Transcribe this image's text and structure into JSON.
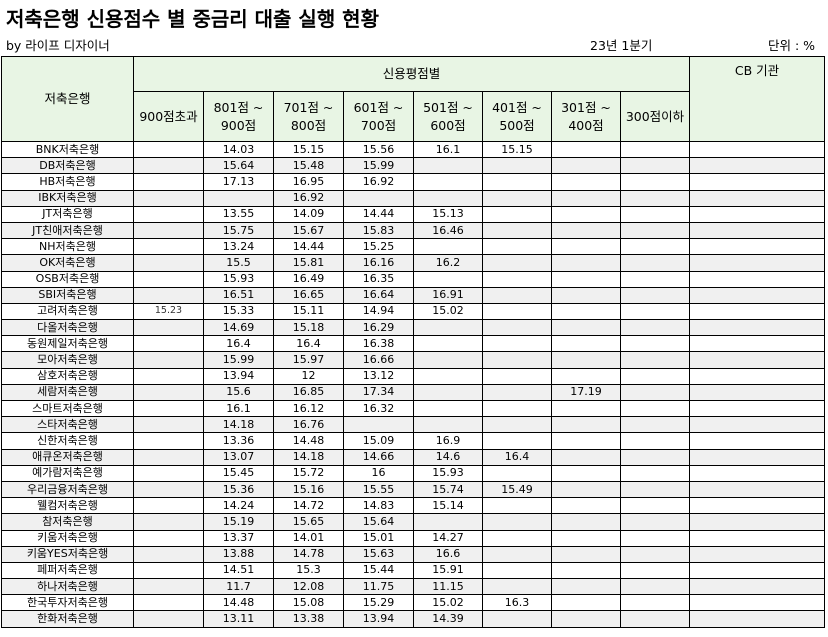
{
  "header": {
    "title": "저축은행 신용점수 별 중금리 대출 실행 현황",
    "byline": "by 라이프 디자이너",
    "period": "23년 1분기",
    "unit": "단위 : %"
  },
  "table": {
    "bank_header": "저축은행",
    "group_header": "신용평점별",
    "cb_header": "CB 기관",
    "columns": [
      {
        "line1": "900점초과",
        "line2": ""
      },
      {
        "line1": "801점 ~",
        "line2": "900점"
      },
      {
        "line1": "701점 ~",
        "line2": "800점"
      },
      {
        "line1": "601점 ~",
        "line2": "700점"
      },
      {
        "line1": "501점 ~",
        "line2": "600점"
      },
      {
        "line1": "401점 ~",
        "line2": "500점"
      },
      {
        "line1": "301점 ~",
        "line2": "400점"
      },
      {
        "line1": "300점이하",
        "line2": ""
      }
    ],
    "rows": [
      {
        "bank": "BNK저축은행",
        "v": [
          "",
          "14.03",
          "15.15",
          "15.56",
          "16.1",
          "15.15",
          "",
          ""
        ],
        "cb": ""
      },
      {
        "bank": "DB저축은행",
        "v": [
          "",
          "15.64",
          "15.48",
          "15.99",
          "",
          "",
          "",
          ""
        ],
        "cb": ""
      },
      {
        "bank": "HB저축은행",
        "v": [
          "",
          "17.13",
          "16.95",
          "16.92",
          "",
          "",
          "",
          ""
        ],
        "cb": ""
      },
      {
        "bank": "IBK저축은행",
        "v": [
          "",
          "",
          "16.92",
          "",
          "",
          "",
          "",
          ""
        ],
        "cb": ""
      },
      {
        "bank": "JT저축은행",
        "v": [
          "",
          "13.55",
          "14.09",
          "14.44",
          "15.13",
          "",
          "",
          ""
        ],
        "cb": ""
      },
      {
        "bank": "JT친애저축은행",
        "v": [
          "",
          "15.75",
          "15.67",
          "15.83",
          "16.46",
          "",
          "",
          ""
        ],
        "cb": ""
      },
      {
        "bank": "NH저축은행",
        "v": [
          "",
          "13.24",
          "14.44",
          "15.25",
          "",
          "",
          "",
          ""
        ],
        "cb": ""
      },
      {
        "bank": "OK저축은행",
        "v": [
          "",
          "15.5",
          "15.81",
          "16.16",
          "16.2",
          "",
          "",
          ""
        ],
        "cb": ""
      },
      {
        "bank": "OSB저축은행",
        "v": [
          "",
          "15.93",
          "16.49",
          "16.35",
          "",
          "",
          "",
          ""
        ],
        "cb": ""
      },
      {
        "bank": "SBI저축은행",
        "v": [
          "",
          "16.51",
          "16.65",
          "16.64",
          "16.91",
          "",
          "",
          ""
        ],
        "cb": ""
      },
      {
        "bank": "고려저축은행",
        "v": [
          "15.23",
          "15.33",
          "15.11",
          "14.94",
          "15.02",
          "",
          "",
          ""
        ],
        "cb": ""
      },
      {
        "bank": "다올저축은행",
        "v": [
          "",
          "14.69",
          "15.18",
          "16.29",
          "",
          "",
          "",
          ""
        ],
        "cb": ""
      },
      {
        "bank": "동원제일저축은행",
        "v": [
          "",
          "16.4",
          "16.4",
          "16.38",
          "",
          "",
          "",
          ""
        ],
        "cb": ""
      },
      {
        "bank": "모아저축은행",
        "v": [
          "",
          "15.99",
          "15.97",
          "16.66",
          "",
          "",
          "",
          ""
        ],
        "cb": ""
      },
      {
        "bank": "삼호저축은행",
        "v": [
          "",
          "13.94",
          "12",
          "13.12",
          "",
          "",
          "",
          ""
        ],
        "cb": ""
      },
      {
        "bank": "세람저축은행",
        "v": [
          "",
          "15.6",
          "16.85",
          "17.34",
          "",
          "",
          "17.19",
          ""
        ],
        "cb": ""
      },
      {
        "bank": "스마트저축은행",
        "v": [
          "",
          "16.1",
          "16.12",
          "16.32",
          "",
          "",
          "",
          ""
        ],
        "cb": ""
      },
      {
        "bank": "스타저축은행",
        "v": [
          "",
          "14.18",
          "16.76",
          "",
          "",
          "",
          "",
          ""
        ],
        "cb": ""
      },
      {
        "bank": "신한저축은행",
        "v": [
          "",
          "13.36",
          "14.48",
          "15.09",
          "16.9",
          "",
          "",
          ""
        ],
        "cb": ""
      },
      {
        "bank": "애큐온저축은행",
        "v": [
          "",
          "13.07",
          "14.18",
          "14.66",
          "14.6",
          "16.4",
          "",
          ""
        ],
        "cb": ""
      },
      {
        "bank": "예가람저축은행",
        "v": [
          "",
          "15.45",
          "15.72",
          "16",
          "15.93",
          "",
          "",
          ""
        ],
        "cb": ""
      },
      {
        "bank": "우리금융저축은행",
        "v": [
          "",
          "15.36",
          "15.16",
          "15.55",
          "15.74",
          "15.49",
          "",
          ""
        ],
        "cb": ""
      },
      {
        "bank": "웰컴저축은행",
        "v": [
          "",
          "14.24",
          "14.72",
          "14.83",
          "15.14",
          "",
          "",
          ""
        ],
        "cb": ""
      },
      {
        "bank": "참저축은행",
        "v": [
          "",
          "15.19",
          "15.65",
          "15.64",
          "",
          "",
          "",
          ""
        ],
        "cb": ""
      },
      {
        "bank": "키움저축은행",
        "v": [
          "",
          "13.37",
          "14.01",
          "15.01",
          "14.27",
          "",
          "",
          ""
        ],
        "cb": ""
      },
      {
        "bank": "키움YES저축은행",
        "v": [
          "",
          "13.88",
          "14.78",
          "15.63",
          "16.6",
          "",
          "",
          ""
        ],
        "cb": ""
      },
      {
        "bank": "페퍼저축은행",
        "v": [
          "",
          "14.51",
          "15.3",
          "15.44",
          "15.91",
          "",
          "",
          ""
        ],
        "cb": ""
      },
      {
        "bank": "하나저축은행",
        "v": [
          "",
          "11.7",
          "12.08",
          "11.75",
          "11.15",
          "",
          "",
          ""
        ],
        "cb": ""
      },
      {
        "bank": "한국투자저축은행",
        "v": [
          "",
          "14.48",
          "15.08",
          "15.29",
          "15.02",
          "16.3",
          "",
          ""
        ],
        "cb": ""
      },
      {
        "bank": "한화저축은행",
        "v": [
          "",
          "13.11",
          "13.38",
          "13.94",
          "14.39",
          "",
          "",
          ""
        ],
        "cb": ""
      }
    ]
  }
}
